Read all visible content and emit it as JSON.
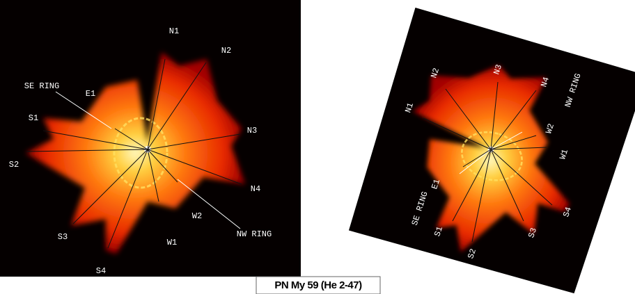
{
  "left_panel": {
    "labels": [
      "N1",
      "N2",
      "N3",
      "N4",
      "W2",
      "NW RING",
      "W1",
      "S4",
      "S3",
      "S2",
      "S1",
      "E1",
      "SE RING"
    ]
  },
  "right_panel": {
    "labels": [
      "N1",
      "N2",
      "N3",
      "N4",
      "NW RING",
      "W2",
      "W1",
      "S4",
      "S3",
      "S2",
      "S1",
      "SE RING",
      "E1"
    ]
  },
  "caption": "PN My 59 (He 2-47)"
}
